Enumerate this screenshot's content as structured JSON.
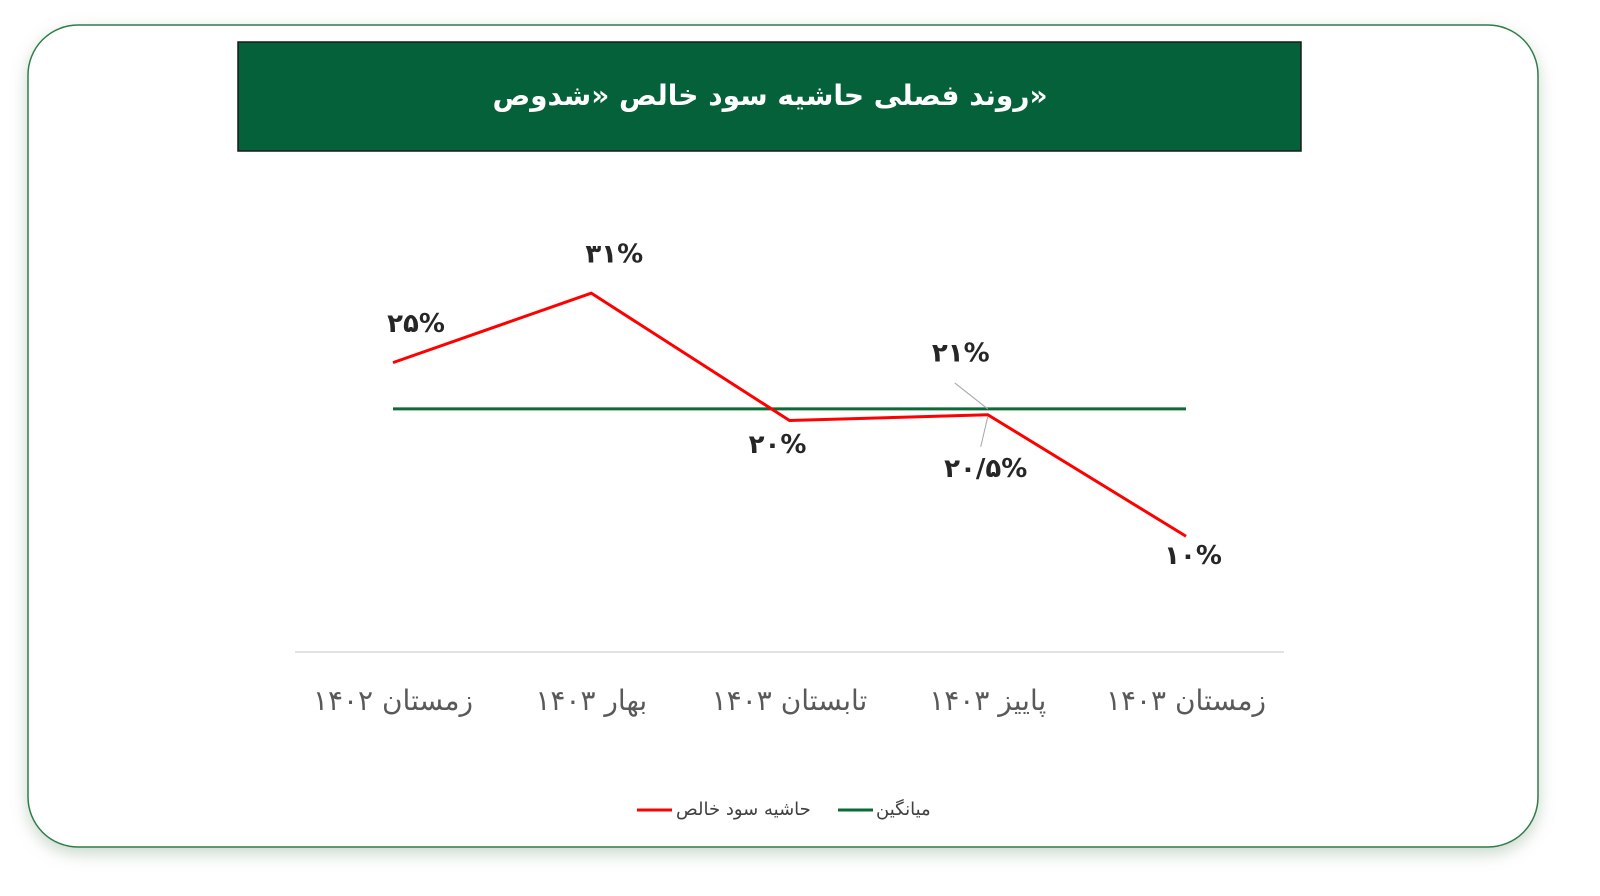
{
  "chart_data": {
    "type": "line",
    "title": "روند فصلی حاشیه سود خالص «شدوص»",
    "categories": [
      "زمستان ۱۴۰۲",
      "بهار ۱۴۰۳",
      "تابستان ۱۴۰۳",
      "پاییز ۱۴۰۳",
      "زمستان ۱۴۰۳"
    ],
    "series": [
      {
        "name": "حاشیه سود خالص",
        "color": "#ff0000",
        "values": [
          25,
          31,
          20,
          20.5,
          10
        ],
        "value_labels": [
          "۲۵%",
          "۳۱%",
          "۲۰%",
          "۲۰/۵%",
          "۱۰%"
        ]
      },
      {
        "name": "میانگین",
        "color": "#0b6b35",
        "values": [
          21,
          21,
          21,
          21,
          21
        ],
        "value_labels": [
          null,
          null,
          null,
          "۲۱%",
          null
        ]
      }
    ],
    "ylim": [
      0,
      40
    ],
    "legend": "bottom"
  }
}
